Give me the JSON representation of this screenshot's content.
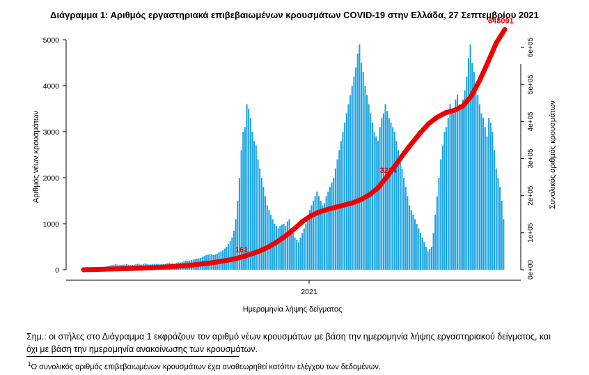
{
  "chart_data": {
    "type": "bar",
    "title": "Διάγραμμα 1: Αριθμός εργαστηριακά επιβεβαιωμένων κρουσμάτων COVID-19 στην Ελλάδα, 27 Σεπτεμβρίου 2021",
    "xlabel": "Ημερομηνία λήψης δείγματος",
    "ylabel": "Αριθμός νέων κρουσμάτων",
    "y2label": "Συνολικός αριθμός κρουσμάτων",
    "x_tick_labels": [
      "2021"
    ],
    "ylim": [
      0,
      5000
    ],
    "y_ticks": [
      "0",
      "1000",
      "2000",
      "3000",
      "4000",
      "5000"
    ],
    "y2lim": [
      0,
      600000
    ],
    "y2_ticks": [
      "0e+00",
      "1e+05",
      "2e+05",
      "3e+05",
      "4e+05",
      "5e+05",
      "6e+05"
    ],
    "grid": false,
    "bar_color": "#1aa3e0",
    "line_color": "#ee0000",
    "series": [
      {
        "kind": "bar",
        "values": [
          2,
          3,
          5,
          8,
          10,
          14,
          18,
          22,
          30,
          40,
          50,
          60,
          70,
          80,
          90,
          100,
          110,
          120,
          110,
          100,
          105,
          110,
          115,
          120,
          110,
          100,
          105,
          110,
          120,
          130,
          115,
          110,
          120,
          140,
          120,
          112,
          115,
          120,
          130,
          125,
          120,
          118,
          120,
          125,
          130,
          140,
          150,
          135,
          140,
          130,
          150,
          160,
          155,
          165,
          180,
          200,
          190,
          200,
          210,
          220,
          230,
          240,
          250,
          260,
          280,
          300,
          320,
          330,
          340,
          330,
          320,
          330,
          350,
          380,
          400,
          420,
          460,
          500,
          560,
          620,
          700,
          850,
          1100,
          1500,
          2000,
          2600,
          3000,
          3100,
          3600,
          3500,
          3300,
          3000,
          2800,
          2700,
          2400,
          2200,
          2000,
          1800,
          1600,
          1400,
          1300,
          1200,
          1100,
          1000,
          950,
          900,
          950,
          980,
          1000,
          950,
          1050,
          1100,
          900,
          800,
          700,
          650,
          600,
          700,
          800,
          900,
          1000,
          1150,
          1300,
          1400,
          1500,
          1600,
          1700,
          1600,
          1500,
          1400,
          1450,
          1600,
          1700,
          1800,
          1900,
          2000,
          2200,
          2400,
          2600,
          2800,
          3000,
          3200,
          3400,
          3600,
          3800,
          4000,
          4200,
          4400,
          4700,
          4900,
          4500,
          4300,
          4000,
          3800,
          3600,
          3400,
          3200,
          3000,
          2900,
          2800,
          3100,
          3300,
          3400,
          3600,
          3450,
          3300,
          3200,
          3100,
          3000,
          2800,
          2600,
          2400,
          2200,
          2000,
          1800,
          1600,
          1400,
          1300,
          1200,
          1100,
          1000,
          900,
          800,
          700,
          600,
          500,
          400,
          450,
          500,
          800,
          1200,
          1600,
          2000,
          2400,
          2700,
          3000,
          3100,
          3300,
          3600,
          3500,
          3400,
          3700,
          3800,
          3600,
          3500,
          3700,
          3900,
          4200,
          4600,
          4900,
          4500,
          4300,
          4000,
          3800,
          3600,
          3400,
          3300,
          3100,
          2900,
          3300,
          3200,
          3000,
          2600,
          2200,
          2000,
          1800,
          1500,
          1100
        ]
      },
      {
        "kind": "line",
        "axis": "y2",
        "values": [
          0,
          600,
          1200,
          1800,
          2400,
          3000,
          3700,
          4500,
          5400,
          6500,
          7800,
          9300,
          11000,
          13000,
          15500,
          18300,
          21500,
          25200,
          29800,
          35700,
          43000,
          51500,
          62000,
          75500,
          91500,
          110000,
          130000,
          146000,
          156000,
          163000,
          169000,
          175000,
          181000,
          190000,
          203000,
          222000,
          250000,
          281000,
          313000,
          342000,
          370000,
          395000,
          412000,
          424000,
          430000,
          441000,
          468000,
          510000,
          560000,
          612000,
          648091
        ]
      }
    ],
    "annotations": [
      "648091",
      "3224",
      "161"
    ]
  },
  "note": "Σημ.: οι στήλες στο Διάγραμμα 1 εκφράζουν τον αριθμό νέων κρουσμάτων με βάση την ημερομηνία λήψης εργαστηριακού δείγματος, και όχι με βάση την ημερομηνία ανακοίνωσης των κρουσμάτων.",
  "footnote_mark": "1",
  "footnote": "Ο συνολικός αριθμός επιβεβαιωμένων κρουσμάτων έχει αναθεωρηθεί κατόπιν ελέγχου των δεδομένων."
}
